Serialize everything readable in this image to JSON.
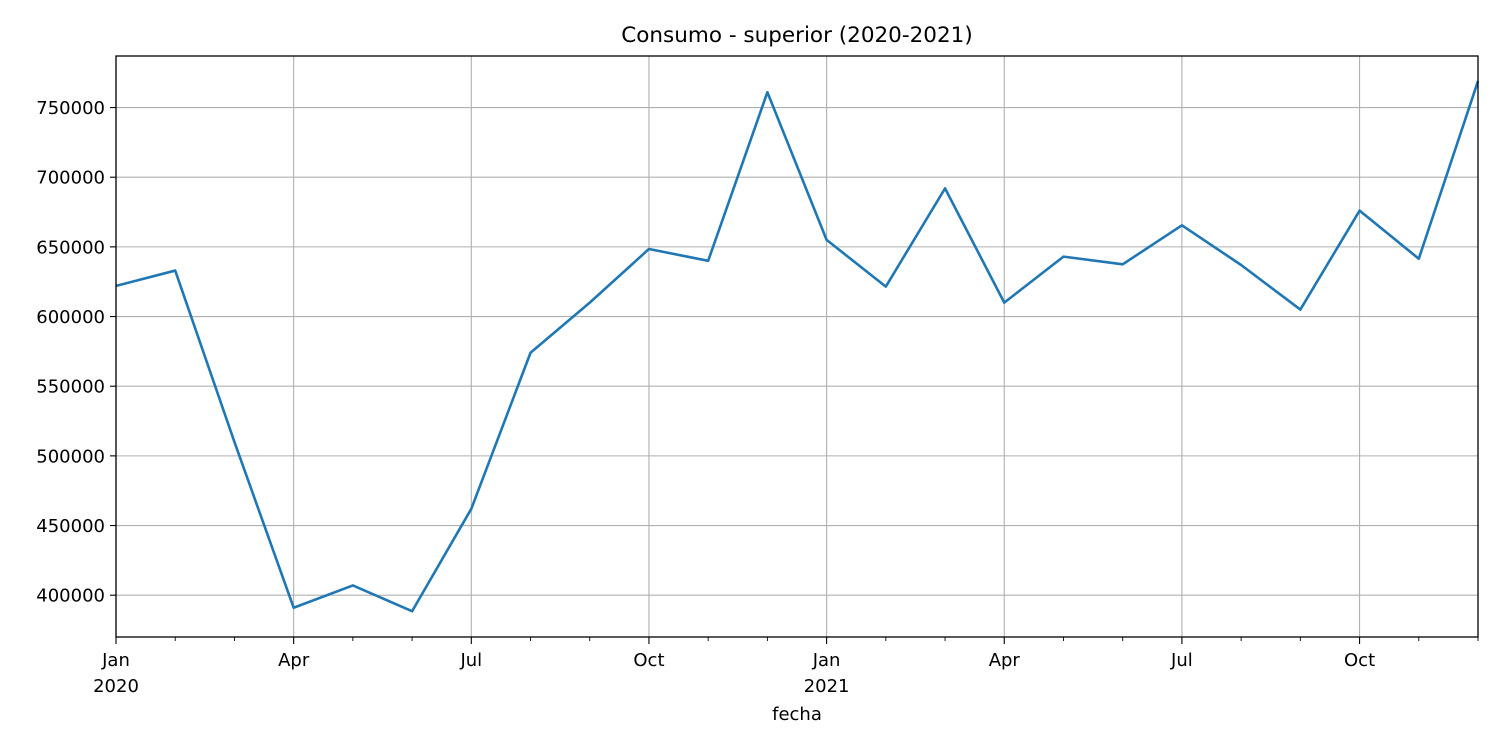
{
  "chart_data": {
    "type": "line",
    "title": "Consumo - superior (2020-2021)",
    "xlabel": "fecha",
    "ylabel": "",
    "x": [
      "2020-01",
      "2020-02",
      "2020-03",
      "2020-04",
      "2020-05",
      "2020-06",
      "2020-07",
      "2020-08",
      "2020-09",
      "2020-10",
      "2020-11",
      "2020-12",
      "2021-01",
      "2021-02",
      "2021-03",
      "2021-04",
      "2021-05",
      "2021-06",
      "2021-07",
      "2021-08",
      "2021-09",
      "2021-10",
      "2021-11",
      "2021-12"
    ],
    "series": [
      {
        "color": "#1f77b4",
        "values": [
          622000,
          633000,
          510000,
          391000,
          407000,
          388500,
          462000,
          574000,
          610000,
          648500,
          640000,
          761000,
          655000,
          621500,
          692000,
          610000,
          643000,
          637500,
          665500,
          637000,
          605000,
          676000,
          641500,
          769000
        ]
      }
    ],
    "ylim": [
      370000,
      787000
    ],
    "yticks": [
      400000,
      450000,
      500000,
      550000,
      600000,
      650000,
      700000,
      750000
    ],
    "ytick_labels": [
      "400000",
      "450000",
      "500000",
      "550000",
      "600000",
      "650000",
      "700000",
      "750000"
    ],
    "xticks_major": [
      {
        "month_index": 0,
        "label": "Jan",
        "sublabel": "2020"
      },
      {
        "month_index": 3,
        "label": "Apr",
        "sublabel": ""
      },
      {
        "month_index": 6,
        "label": "Jul",
        "sublabel": ""
      },
      {
        "month_index": 9,
        "label": "Oct",
        "sublabel": ""
      },
      {
        "month_index": 12,
        "label": "Jan",
        "sublabel": "2021"
      },
      {
        "month_index": 15,
        "label": "Apr",
        "sublabel": ""
      },
      {
        "month_index": 18,
        "label": "Jul",
        "sublabel": ""
      },
      {
        "month_index": 21,
        "label": "Oct",
        "sublabel": ""
      }
    ],
    "grid": true
  }
}
